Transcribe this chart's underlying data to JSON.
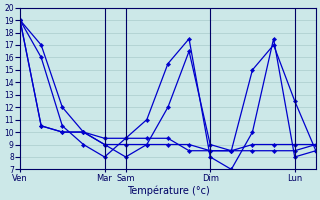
{
  "background_color": "#cce8e8",
  "grid_color": "#aacccc",
  "line_color": "#0000cc",
  "xlabel": "Température (°c)",
  "ylim": [
    7,
    20
  ],
  "yticks": [
    7,
    8,
    9,
    10,
    11,
    12,
    13,
    14,
    15,
    16,
    17,
    18,
    19,
    20
  ],
  "xlim": [
    0,
    14
  ],
  "tick_labels": [
    "Ven",
    "Mar",
    "Sam",
    "Dim",
    "Lun"
  ],
  "tick_positions": [
    0,
    4,
    5,
    9,
    13
  ],
  "vlines": [
    4,
    5,
    9,
    13
  ],
  "series": [
    {
      "x": [
        0,
        1,
        2,
        3,
        4,
        5,
        6,
        7,
        8,
        9,
        10,
        11,
        12,
        13,
        14
      ],
      "y": [
        19,
        16,
        10.5,
        9,
        8,
        9.5,
        11,
        15.5,
        17.5,
        8,
        7,
        10,
        17.5,
        8,
        8.5
      ]
    },
    {
      "x": [
        0,
        1,
        2,
        3,
        4,
        5,
        6,
        7,
        8,
        9,
        10,
        11,
        12,
        13,
        14
      ],
      "y": [
        19,
        17,
        12,
        10,
        9,
        8,
        9,
        12,
        16.5,
        9,
        8.5,
        15,
        17,
        12.5,
        8.5
      ]
    },
    {
      "x": [
        0,
        1,
        2,
        3,
        4,
        5,
        6,
        7,
        8,
        9,
        10,
        11,
        12,
        13,
        14
      ],
      "y": [
        19,
        10.5,
        10,
        10,
        9,
        9,
        9,
        9,
        9,
        8.5,
        8.5,
        8.5,
        8.5,
        8.5,
        9
      ]
    },
    {
      "x": [
        0,
        1,
        2,
        3,
        4,
        5,
        6,
        7,
        8,
        9,
        10,
        11,
        12,
        13,
        14
      ],
      "y": [
        19,
        10.5,
        10,
        10,
        9.5,
        9.5,
        9.5,
        9.5,
        8.5,
        8.5,
        8.5,
        9,
        9,
        9,
        9
      ]
    }
  ]
}
